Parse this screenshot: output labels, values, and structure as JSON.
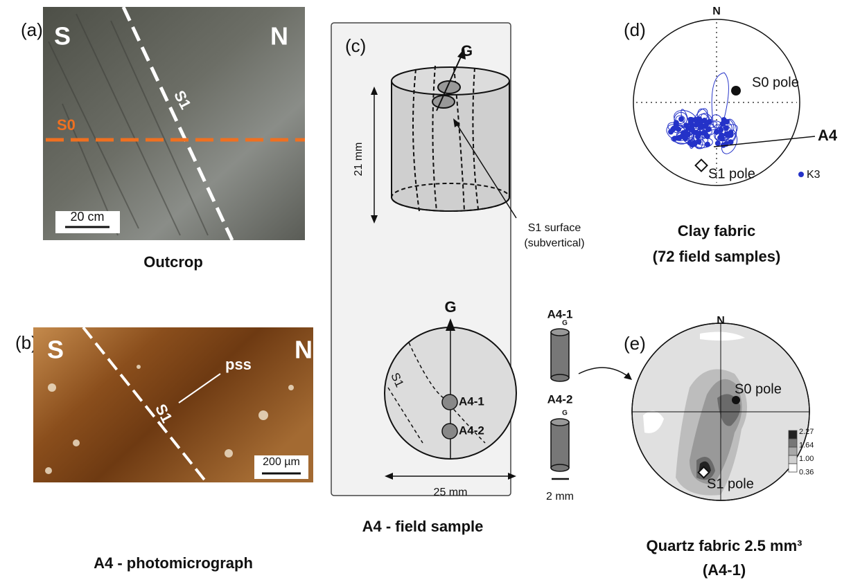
{
  "panel_a": {
    "label": "(a)",
    "left": "S",
    "right": "N",
    "s1": "S1",
    "s0": "S0",
    "scale": "20 cm",
    "caption": "Outcrop"
  },
  "panel_b": {
    "label": "(b)",
    "left": "S",
    "right": "N",
    "pss": "pss",
    "s1": "S1",
    "scale": "200 µm",
    "caption": "A4 - photomicrograph"
  },
  "panel_c": {
    "label": "(c)",
    "top_g": "G",
    "height": "21 mm",
    "surface": "S1 surface",
    "surface_note": "(subvertical)",
    "disc_g": "G",
    "disc_s1": "S1",
    "disc_a41": "A4-1",
    "disc_a42": "A4-2",
    "width": "25 mm",
    "core1": "A4-1",
    "core1_g": "G",
    "core2": "A4-2",
    "core2_g": "G",
    "core_scale": "2 mm",
    "caption": "A4 - field sample"
  },
  "panel_d": {
    "label": "(d)",
    "north": "N",
    "s0": "S0 pole",
    "a4": "A4",
    "s1": "S1 pole",
    "k3": "K3",
    "caption": "Clay fabric",
    "caption2": "(72 field samples)"
  },
  "panel_e": {
    "label": "(e)",
    "north": "N",
    "s0": "S0 pole",
    "s1": "S1 pole",
    "scale_labels": [
      "2.27",
      "1.64",
      "1.00",
      "0.36"
    ],
    "caption": "Quartz fabric 2.5 mm³",
    "caption2": "(A4-1)"
  }
}
